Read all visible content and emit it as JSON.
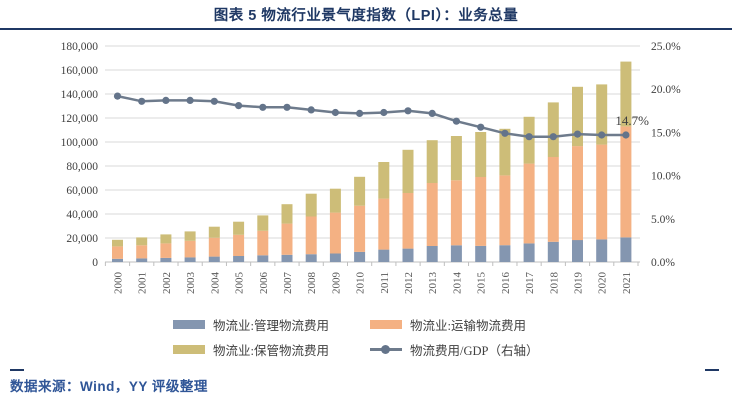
{
  "title": "图表 5 物流行业景气度指数（LPI）：业务总量",
  "footer": {
    "source": "数据来源：Wind，YY 评级整理"
  },
  "colors": {
    "accent_navy": "#1F3864",
    "footer_blue": "#2F5597",
    "gridline": "#D9D9D9",
    "axis_line": "#BFBFBF",
    "axis_label": "#404040",
    "x_label": "#595959"
  },
  "chart_data": {
    "type": "bar",
    "subtype": "stacked-column-with-line",
    "categories": [
      "2000",
      "2001",
      "2002",
      "2003",
      "2004",
      "2005",
      "2006",
      "2007",
      "2008",
      "2009",
      "2010",
      "2011",
      "2012",
      "2013",
      "2014",
      "2015",
      "2016",
      "2017",
      "2018",
      "2019",
      "2020",
      "2021"
    ],
    "series": [
      {
        "name": "物流业:管理物流费用",
        "type": "column",
        "stack": true,
        "color": "#8496B0",
        "values": [
          2700,
          3000,
          3400,
          3900,
          4500,
          5000,
          5600,
          6000,
          6500,
          7100,
          8400,
          10300,
          11200,
          13300,
          13900,
          13400,
          14000,
          15500,
          16800,
          18300,
          18800,
          20500
        ]
      },
      {
        "name": "物流业:运输物流费用",
        "type": "column",
        "stack": true,
        "color": "#F4B183",
        "values": [
          10300,
          10900,
          12100,
          13800,
          15700,
          17700,
          20400,
          26000,
          31400,
          34100,
          38500,
          42500,
          46300,
          52500,
          54200,
          57400,
          58200,
          66500,
          70700,
          78300,
          79000,
          92500
        ]
      },
      {
        "name": "物流业:保管物流费用",
        "type": "column",
        "stack": true,
        "color": "#CDBD78",
        "values": [
          5500,
          6600,
          7500,
          7800,
          9200,
          10900,
          12800,
          16200,
          19000,
          19900,
          24100,
          30500,
          36000,
          35700,
          36900,
          37500,
          38800,
          39000,
          45500,
          49400,
          50200,
          54000
        ]
      },
      {
        "name": "物流费用/GDP（右轴）",
        "type": "line",
        "axis": "right",
        "color": "#6E7B8C",
        "marker_color": "#64748A",
        "values": [
          19.2,
          18.6,
          18.7,
          18.7,
          18.6,
          18.1,
          17.9,
          17.9,
          17.6,
          17.3,
          17.2,
          17.3,
          17.5,
          17.2,
          16.3,
          15.6,
          14.9,
          14.5,
          14.5,
          14.8,
          14.7,
          14.7
        ]
      }
    ],
    "left_axis": {
      "min": 0,
      "max": 180000,
      "step": 20000,
      "tick_labels": [
        "0",
        "20,000",
        "40,000",
        "60,000",
        "80,000",
        "100,000",
        "120,000",
        "140,000",
        "160,000",
        "180,000"
      ]
    },
    "right_axis": {
      "min": 0,
      "max": 25,
      "step": 5,
      "tick_labels": [
        "0.0%",
        "5.0%",
        "10.0%",
        "15.0%",
        "20.0%",
        "25.0%"
      ]
    },
    "annotation": {
      "text": "14.7%",
      "category": "2021",
      "series": "物流费用/GDP（右轴）"
    },
    "grid": "horizontal-only",
    "legend_position": "bottom"
  }
}
